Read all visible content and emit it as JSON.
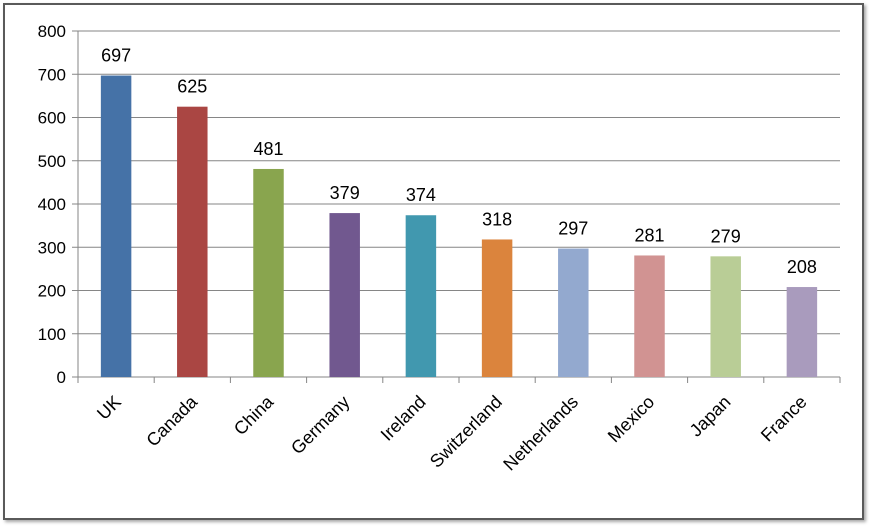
{
  "chart_data": {
    "type": "bar",
    "title": "",
    "xlabel": "",
    "ylabel": "",
    "categories": [
      "UK",
      "Canada",
      "China",
      "Germany",
      "Ireland",
      "Switzerland",
      "Netherlands",
      "Mexico",
      "Japan",
      "France"
    ],
    "values": [
      697,
      625,
      481,
      379,
      374,
      318,
      297,
      281,
      279,
      208
    ],
    "ylim": [
      0,
      800
    ],
    "yticks": [
      0,
      100,
      200,
      300,
      400,
      500,
      600,
      700,
      800
    ],
    "grid": true,
    "legend": "none",
    "data_labels": true,
    "colors": [
      "#4572a7",
      "#aa4643",
      "#89a54e",
      "#71588f",
      "#4198af",
      "#db843d",
      "#93a9cf",
      "#d19392",
      "#b9cd96",
      "#a99bbd"
    ]
  }
}
